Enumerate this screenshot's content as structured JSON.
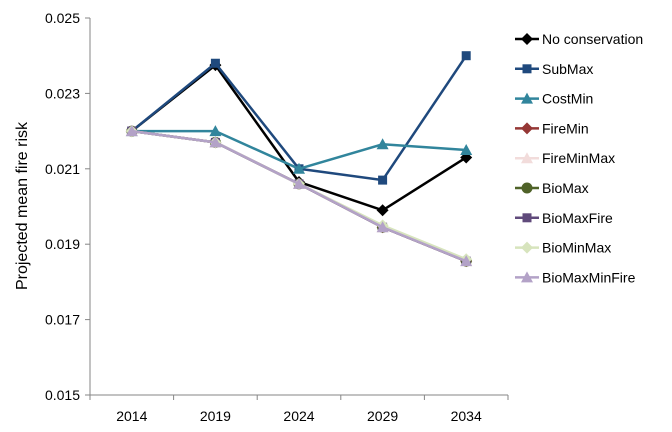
{
  "chart_data": {
    "type": "line",
    "title": "",
    "xlabel": "",
    "ylabel": "Projected mean fire risk",
    "x": [
      "2014",
      "2019",
      "2024",
      "2029",
      "2034"
    ],
    "ylim": [
      0.015,
      0.025
    ],
    "yticks": [
      "0.015",
      "0.017",
      "0.019",
      "0.021",
      "0.023",
      "0.025"
    ],
    "ytick_values": [
      0.015,
      0.017,
      0.019,
      0.021,
      0.023,
      0.025
    ],
    "grid": false,
    "legend_position": "right",
    "series": [
      {
        "name": "No conservation",
        "color": "#000000",
        "marker": "diamond",
        "values": [
          0.022,
          0.02375,
          0.02065,
          0.0199,
          0.0213
        ]
      },
      {
        "name": "SubMax",
        "color": "#1F497D",
        "marker": "square",
        "values": [
          0.022,
          0.0238,
          0.021,
          0.0207,
          0.024
        ]
      },
      {
        "name": "CostMin",
        "color": "#31859C",
        "marker": "triangle",
        "values": [
          0.022,
          0.022,
          0.021,
          0.02165,
          0.0215
        ]
      },
      {
        "name": "FireMin",
        "color": "#953735",
        "marker": "diamond",
        "values": [
          0.022,
          0.0217,
          0.0206,
          0.01945,
          0.01855
        ]
      },
      {
        "name": "FireMinMax",
        "color": "#F2DCDB",
        "marker": "triangle",
        "values": [
          0.022,
          0.0217,
          0.0206,
          0.01945,
          0.01855
        ]
      },
      {
        "name": "BioMax",
        "color": "#4F6228",
        "marker": "circle",
        "values": [
          0.022,
          0.0217,
          0.0206,
          0.01945,
          0.01855
        ]
      },
      {
        "name": "BioMaxFire",
        "color": "#604A7B",
        "marker": "square",
        "values": [
          0.022,
          0.0217,
          0.0206,
          0.01945,
          0.01855
        ]
      },
      {
        "name": "BioMinMax",
        "color": "#D7E4BD",
        "marker": "diamond",
        "values": [
          0.022,
          0.0217,
          0.0206,
          0.0195,
          0.0186
        ]
      },
      {
        "name": "BioMaxMinFire",
        "color": "#B3A2C7",
        "marker": "triangle",
        "values": [
          0.022,
          0.0217,
          0.0206,
          0.01945,
          0.01855
        ]
      }
    ]
  }
}
